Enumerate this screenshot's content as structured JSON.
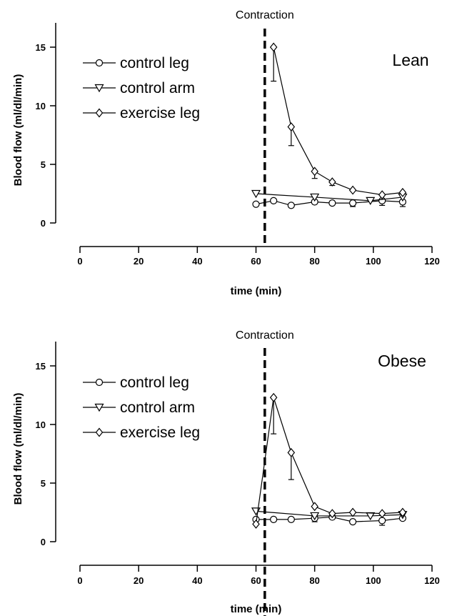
{
  "chart_data": [
    {
      "type": "line",
      "group_label": "Lean",
      "annotation": "Contraction",
      "annotation_x": 63,
      "xlabel": "time (min)",
      "ylabel": "Blood flow (ml/dl/min)",
      "xlim": [
        0,
        120
      ],
      "ylim": [
        0,
        16
      ],
      "xticks": [
        0,
        20,
        40,
        60,
        80,
        100,
        120
      ],
      "yticks": [
        0,
        5,
        10,
        15
      ],
      "grid": false,
      "legend_position": "top-left",
      "series": [
        {
          "name": "control leg",
          "marker": "circle",
          "x": [
            60,
            66,
            72,
            80,
            86,
            93,
            103,
            110
          ],
          "y": [
            1.6,
            1.9,
            1.5,
            1.8,
            1.7,
            1.7,
            1.9,
            1.8
          ],
          "err": [
            0,
            0,
            0,
            0,
            0,
            0.3,
            0.4,
            0.4
          ]
        },
        {
          "name": "control arm",
          "marker": "triangle-down",
          "x": [
            60,
            80,
            99,
            110
          ],
          "y": [
            2.5,
            2.2,
            1.9,
            2.2
          ],
          "err": [
            0,
            0,
            0,
            0
          ]
        },
        {
          "name": "exercise leg",
          "marker": "diamond",
          "x": [
            66,
            72,
            80,
            86,
            93,
            103,
            110
          ],
          "y": [
            15.0,
            8.2,
            4.4,
            3.5,
            2.8,
            2.4,
            2.6
          ],
          "err": [
            2.9,
            1.6,
            0.6,
            0.3,
            0,
            0,
            0
          ]
        }
      ]
    },
    {
      "type": "line",
      "group_label": "Obese",
      "annotation": "Contraction",
      "annotation_x": 63,
      "xlabel": "time (min)",
      "ylabel": "Blood flow (ml/dl/min)",
      "xlim": [
        0,
        120
      ],
      "ylim": [
        0,
        16
      ],
      "xticks": [
        0,
        20,
        40,
        60,
        80,
        100,
        120
      ],
      "yticks": [
        0,
        5,
        10,
        15
      ],
      "grid": false,
      "legend_position": "top-left",
      "series": [
        {
          "name": "control leg",
          "marker": "circle",
          "x": [
            60,
            66,
            72,
            80,
            86,
            93,
            103,
            110
          ],
          "y": [
            1.9,
            1.9,
            1.9,
            2.0,
            2.1,
            1.7,
            1.8,
            2.0
          ],
          "err": [
            0,
            0,
            0,
            0.3,
            0,
            0,
            0.4,
            0
          ]
        },
        {
          "name": "control arm",
          "marker": "triangle-down",
          "x": [
            60,
            80,
            99,
            110
          ],
          "y": [
            2.6,
            2.2,
            2.2,
            2.3
          ],
          "err": [
            0,
            0,
            0,
            0
          ]
        },
        {
          "name": "exercise leg",
          "marker": "diamond",
          "x": [
            60,
            66,
            72,
            80,
            86,
            93,
            103,
            110
          ],
          "y": [
            1.5,
            12.3,
            7.6,
            3.0,
            2.4,
            2.5,
            2.4,
            2.5
          ],
          "err": [
            0,
            3.1,
            2.3,
            0,
            0,
            0,
            0,
            0
          ]
        }
      ]
    }
  ]
}
